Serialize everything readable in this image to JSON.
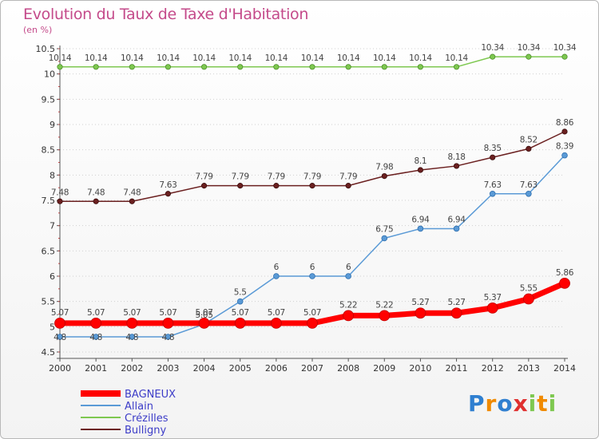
{
  "title": "Evolution du Taux de Taxe d'Habitation",
  "unit_label": "(en %)",
  "logo_text": "Proxiti",
  "chart_data": {
    "type": "line",
    "title": "Evolution du Taux de Taxe d'Habitation",
    "ylabel": "(en %)",
    "xlabel": "",
    "x": [
      "2000",
      "2001",
      "2002",
      "2003",
      "2004",
      "2005",
      "2006",
      "2007",
      "2008",
      "2009",
      "2010",
      "2011",
      "2012",
      "2013",
      "2014"
    ],
    "ylim": [
      4.5,
      10.5
    ],
    "yticks": [
      4.5,
      5,
      5.5,
      6,
      6.5,
      7,
      7.5,
      8,
      8.5,
      9,
      9.5,
      10,
      10.5
    ],
    "ytick_labels": [
      "4.5",
      "5",
      "5.5",
      "6",
      "6.5",
      "7",
      "7.5",
      "8",
      "8.5",
      "9",
      "9.5",
      "10",
      "10.5"
    ],
    "grid": "horizontal dotted",
    "legend_position": "bottom-left",
    "series": [
      {
        "name": "Crézilles",
        "color": "#7ec850",
        "values": [
          10.14,
          10.14,
          10.14,
          10.14,
          10.14,
          10.14,
          10.14,
          10.14,
          10.14,
          10.14,
          10.14,
          10.14,
          10.34,
          10.34,
          10.34
        ],
        "labels": [
          "10.14",
          "10.14",
          "10.14",
          "10.14",
          "10.14",
          "10.14",
          "10.14",
          "10.14",
          "10.14",
          "10.14",
          "10.14",
          "10.14",
          "10.34",
          "10.34",
          "10.34"
        ]
      },
      {
        "name": "Bulligny",
        "color": "#6b2020",
        "values": [
          7.48,
          7.48,
          7.48,
          7.63,
          7.79,
          7.79,
          7.79,
          7.79,
          7.79,
          7.98,
          8.1,
          8.18,
          8.35,
          8.52,
          8.86
        ],
        "labels": [
          "7.48",
          "7.48",
          "7.48",
          "7.63",
          "7.79",
          "7.79",
          "7.79",
          "7.79",
          "7.79",
          "7.98",
          "8.1",
          "8.18",
          "8.35",
          "8.52",
          "8.86"
        ]
      },
      {
        "name": "Allain",
        "color": "#5a9ad6",
        "values": [
          4.8,
          4.8,
          4.8,
          4.8,
          5.05,
          5.5,
          6,
          6,
          6,
          6.75,
          6.94,
          6.94,
          7.63,
          7.63,
          8.39
        ],
        "labels": [
          "4.8",
          "4.8",
          "4.8",
          "4.8",
          "5.05",
          "5.5",
          "6",
          "6",
          "6",
          "6.75",
          "6.94",
          "6.94",
          "7.63",
          "7.63",
          "8.39"
        ]
      },
      {
        "name": "BAGNEUX",
        "color": "#ff0000",
        "values": [
          5.07,
          5.07,
          5.07,
          5.07,
          5.07,
          5.07,
          5.07,
          5.07,
          5.22,
          5.22,
          5.27,
          5.27,
          5.37,
          5.55,
          5.86
        ],
        "labels": [
          "5.07",
          "5.07",
          "5.07",
          "5.07",
          "5.07",
          "5.07",
          "5.07",
          "5.07",
          "5.22",
          "5.22",
          "5.27",
          "5.27",
          "5.37",
          "5.55",
          "5.86"
        ]
      }
    ],
    "legend": [
      {
        "name": "BAGNEUX",
        "color": "#ff0000"
      },
      {
        "name": "Allain",
        "color": "#5a9ad6"
      },
      {
        "name": "Crézilles",
        "color": "#7ec850"
      },
      {
        "name": "Bulligny",
        "color": "#6b2020"
      }
    ]
  }
}
